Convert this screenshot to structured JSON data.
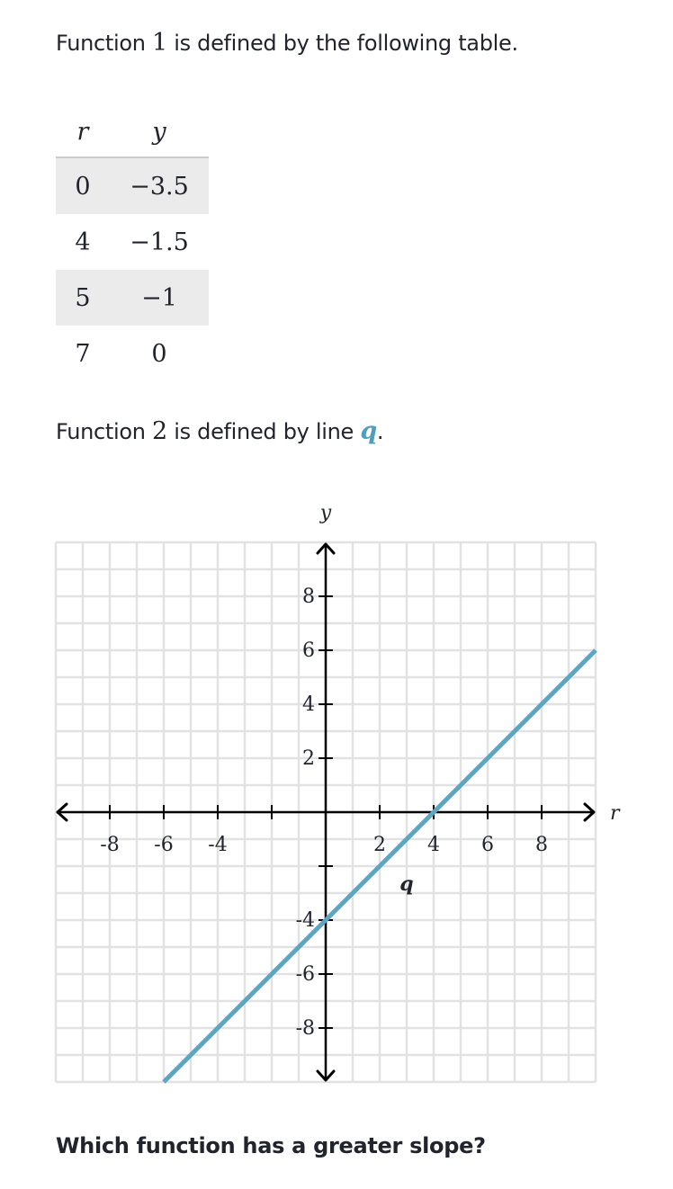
{
  "intro1": {
    "before": "Function ",
    "num": "1",
    "after": " is defined by the following table."
  },
  "table": {
    "header": [
      "r",
      "y"
    ],
    "rows": [
      [
        "0",
        "−3.5"
      ],
      [
        "4",
        "−1.5"
      ],
      [
        "5",
        "−1"
      ],
      [
        "7",
        "0"
      ]
    ]
  },
  "intro2": {
    "before": "Function ",
    "num": "2",
    "middle": " is defined by line ",
    "line_name": "q",
    "after": "."
  },
  "graph": {
    "xlabel": "r",
    "ylabel": "y",
    "xlim": [
      -10,
      10
    ],
    "ylim": [
      -10,
      10
    ],
    "grid_step": 1,
    "xticks": [
      -8,
      -6,
      -4,
      {
        "value": -2,
        "label": null
      },
      2,
      4,
      6,
      8
    ],
    "yticks": [
      8,
      6,
      4,
      2,
      {
        "value": -2,
        "label": null
      },
      -4,
      -6,
      -8
    ],
    "line": {
      "name": "q",
      "color": "#5aa6c4",
      "x": [
        -6,
        10
      ],
      "y": [
        -10,
        6
      ]
    }
  },
  "question": "Which function has a greater slope?"
}
